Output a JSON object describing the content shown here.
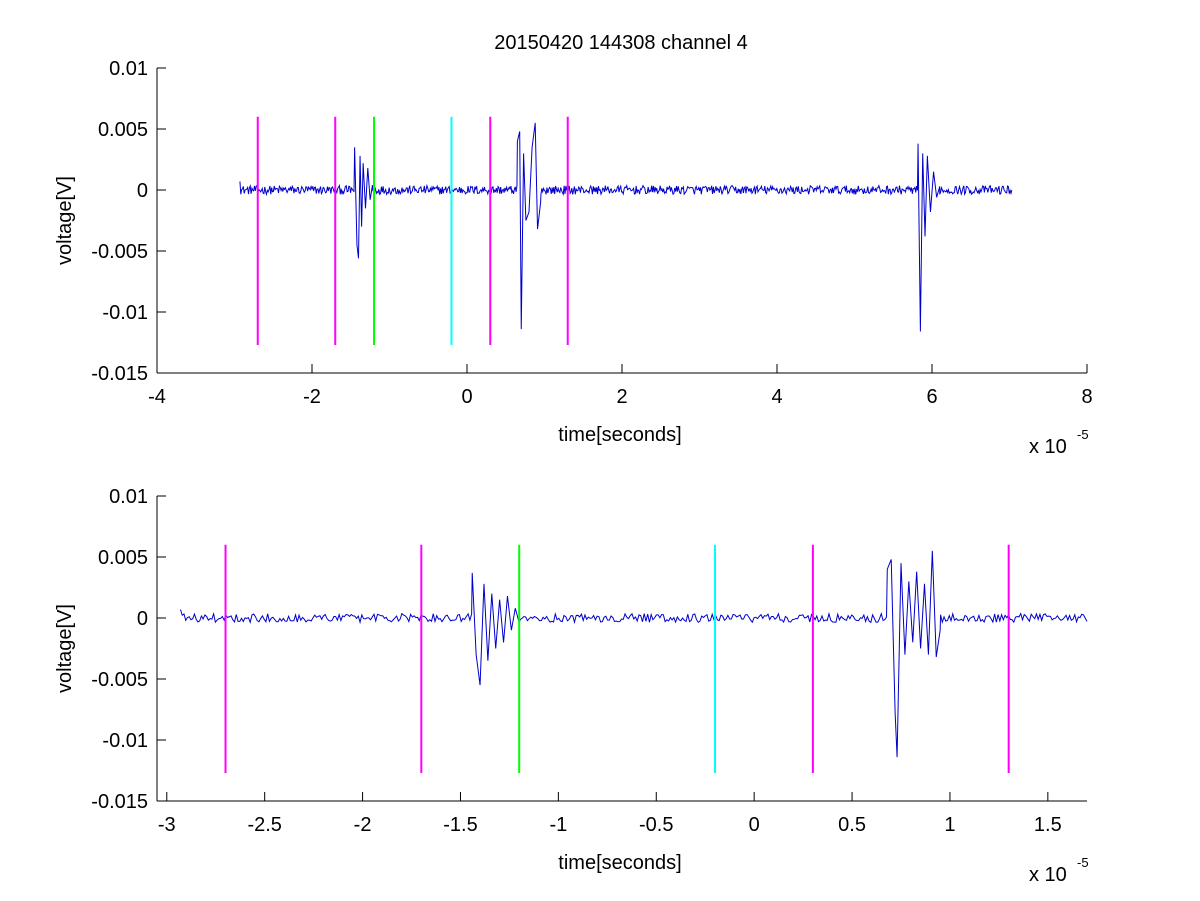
{
  "figure": {
    "title": "20150420 144308 channel 4"
  },
  "chart_data": [
    {
      "type": "line",
      "title": "20150420 144308 channel 4",
      "xlabel": "time[seconds]",
      "ylabel": "voltage[V]",
      "x_exponent_label": "x 10",
      "x_exponent": "-5",
      "xlim": [
        -4,
        8
      ],
      "ylim": [
        -0.015,
        0.01
      ],
      "x_ticks": [
        -4,
        -2,
        0,
        2,
        4,
        6,
        8
      ],
      "x_tick_labels": [
        "-4",
        "-2",
        "0",
        "2",
        "4",
        "6",
        "8"
      ],
      "y_ticks": [
        -0.015,
        -0.01,
        -0.005,
        0,
        0.005,
        0.01
      ],
      "y_tick_labels": [
        "-0.015",
        "-0.01",
        "-0.005",
        "0",
        "0.005",
        "0.01"
      ],
      "grid": false,
      "series": [
        {
          "color": "#0000cc",
          "x_range": [
            -2.93,
            7.03
          ],
          "baseline": 0,
          "noise_amplitude": 0.0004,
          "bursts": [
            {
              "x": [
                -1.45,
                -1.42,
                -1.4,
                -1.38,
                -1.36,
                -1.34,
                -1.31,
                -1.28,
                -1.25,
                -1.22
              ],
              "y": [
                0.0035,
                -0.0045,
                -0.0056,
                0.0028,
                -0.003,
                0.0022,
                -0.0015,
                0.0018,
                -0.0008,
                0.0004
              ]
            },
            {
              "x": [
                0.65,
                0.68,
                0.7,
                0.73,
                0.76,
                0.8,
                0.84,
                0.88,
                0.91,
                0.95
              ],
              "y": [
                0.004,
                0.0048,
                -0.0114,
                0.003,
                -0.0025,
                -0.0018,
                0.0035,
                0.0055,
                -0.0032,
                -0.001
              ]
            },
            {
              "x": [
                5.82,
                5.85,
                5.88,
                5.91,
                5.94,
                5.98,
                6.02,
                6.06,
                6.1
              ],
              "y": [
                0.0038,
                -0.0116,
                0.003,
                -0.0038,
                0.0028,
                -0.0018,
                0.0015,
                -0.0006,
                0.0003
              ]
            }
          ]
        }
      ],
      "vertical_markers": [
        {
          "x": -2.7,
          "color": "#ff00ff",
          "y_range": [
            -0.0127,
            0.006
          ]
        },
        {
          "x": -1.7,
          "color": "#ff00ff",
          "y_range": [
            -0.0127,
            0.006
          ]
        },
        {
          "x": -1.2,
          "color": "#00ff00",
          "y_range": [
            -0.0127,
            0.006
          ]
        },
        {
          "x": -0.2,
          "color": "#00ffff",
          "y_range": [
            -0.0127,
            0.006
          ]
        },
        {
          "x": 0.3,
          "color": "#ff00ff",
          "y_range": [
            -0.0127,
            0.006
          ]
        },
        {
          "x": 1.3,
          "color": "#ff00ff",
          "y_range": [
            -0.0127,
            0.006
          ]
        }
      ]
    },
    {
      "type": "line",
      "title": "",
      "xlabel": "time[seconds]",
      "ylabel": "voltage[V]",
      "x_exponent_label": "x 10",
      "x_exponent": "-5",
      "xlim": [
        -3.05,
        1.7
      ],
      "ylim": [
        -0.015,
        0.01
      ],
      "x_ticks": [
        -3,
        -2.5,
        -2,
        -1.5,
        -1,
        -0.5,
        0,
        0.5,
        1,
        1.5
      ],
      "x_tick_labels": [
        "-3",
        "-2.5",
        "-2",
        "-1.5",
        "-1",
        "-0.5",
        "0",
        "0.5",
        "1",
        "1.5"
      ],
      "y_ticks": [
        -0.015,
        -0.01,
        -0.005,
        0,
        0.005,
        0.01
      ],
      "y_tick_labels": [
        "-0.015",
        "-0.01",
        "-0.005",
        "0",
        "0.005",
        "0.01"
      ],
      "grid": false,
      "series": [
        {
          "color": "#0000cc",
          "x_range": [
            -2.93,
            1.7
          ],
          "baseline": 0,
          "noise_amplitude": 0.0004,
          "bursts": [
            {
              "x": [
                -1.44,
                -1.42,
                -1.4,
                -1.38,
                -1.36,
                -1.34,
                -1.32,
                -1.3,
                -1.28,
                -1.26,
                -1.24,
                -1.22,
                -1.2
              ],
              "y": [
                0.0037,
                -0.003,
                -0.0055,
                0.0028,
                -0.0035,
                0.002,
                -0.0025,
                0.0015,
                -0.002,
                0.0018,
                -0.001,
                0.0008,
                -0.0004
              ]
            },
            {
              "x": [
                0.68,
                0.7,
                0.72,
                0.73,
                0.75,
                0.77,
                0.79,
                0.81,
                0.83,
                0.85,
                0.87,
                0.89,
                0.91,
                0.93,
                0.95
              ],
              "y": [
                0.004,
                0.0048,
                -0.0078,
                -0.0114,
                0.0045,
                -0.003,
                0.003,
                -0.002,
                0.0038,
                -0.0025,
                0.0028,
                -0.003,
                0.0055,
                -0.0032,
                -0.001
              ]
            }
          ]
        }
      ],
      "vertical_markers": [
        {
          "x": -2.7,
          "color": "#ff00ff",
          "y_range": [
            -0.0127,
            0.006
          ]
        },
        {
          "x": -1.7,
          "color": "#ff00ff",
          "y_range": [
            -0.0127,
            0.006
          ]
        },
        {
          "x": -1.2,
          "color": "#00ff00",
          "y_range": [
            -0.0127,
            0.006
          ]
        },
        {
          "x": -0.2,
          "color": "#00ffff",
          "y_range": [
            -0.0127,
            0.006
          ]
        },
        {
          "x": 0.3,
          "color": "#ff00ff",
          "y_range": [
            -0.0127,
            0.006
          ]
        },
        {
          "x": 1.3,
          "color": "#ff00ff",
          "y_range": [
            -0.0127,
            0.006
          ]
        }
      ]
    }
  ]
}
